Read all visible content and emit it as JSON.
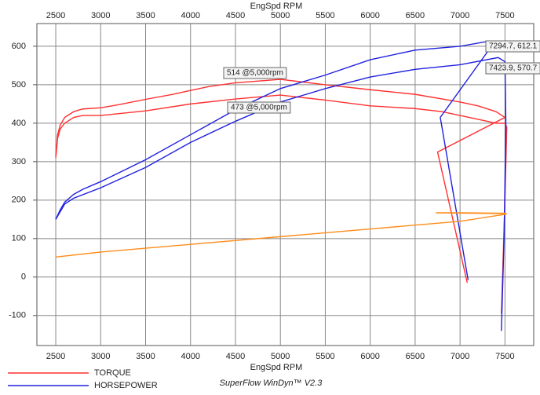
{
  "chart_data": {
    "type": "line",
    "x_label": "EngSpd  RPM",
    "footer": "SuperFlow WinDyn™ V2.3",
    "xlim": [
      2290,
      7820
    ],
    "ylim": [
      -178,
      659
    ],
    "xticks": [
      2500,
      3000,
      3500,
      4000,
      4500,
      5000,
      5500,
      6000,
      6500,
      7000,
      7500
    ],
    "yticks": [
      -100,
      0,
      100,
      200,
      300,
      400,
      500,
      600
    ],
    "grid": true,
    "series": [
      {
        "name": "TORQUE",
        "color": "#ff3030",
        "x": [
          2500,
          2520,
          2550,
          2600,
          2700,
          2800,
          3000,
          3200,
          3500,
          3800,
          4000,
          4200,
          4500,
          5000,
          5500,
          6000,
          6500,
          7000,
          7200,
          7400,
          7500,
          6750,
          7080
        ],
        "values": [
          315,
          370,
          395,
          415,
          430,
          437,
          440,
          448,
          462,
          475,
          485,
          495,
          505,
          514,
          500,
          487,
          475,
          455,
          445,
          430,
          415,
          325,
          -15
        ]
      },
      {
        "color": "#ff3030",
        "x": [
          2500,
          2520,
          2550,
          2600,
          2700,
          2800,
          3000,
          3500,
          4000,
          4500,
          5000,
          5500,
          6000,
          6500,
          6800,
          7000,
          7200,
          7400,
          7500,
          7520,
          7500,
          7460
        ],
        "values": [
          310,
          360,
          385,
          400,
          415,
          420,
          420,
          432,
          450,
          463,
          473,
          460,
          445,
          438,
          430,
          420,
          410,
          400,
          400,
          390,
          200,
          -95
        ]
      },
      {
        "name": "HORSEPOWER",
        "color": "#2020e0",
        "x": [
          2500,
          2550,
          2600,
          2700,
          2800,
          3000,
          3500,
          4000,
          4500,
          5000,
          5500,
          6000,
          6500,
          7000,
          7294.7,
          7350,
          6780,
          7090
        ],
        "values": [
          150,
          175,
          195,
          215,
          228,
          248,
          305,
          370,
          435,
          490,
          525,
          565,
          590,
          600,
          612.1,
          600,
          415,
          -8
        ]
      },
      {
        "color": "#2020e0",
        "x": [
          2500,
          2600,
          2700,
          3000,
          3500,
          4000,
          4500,
          5000,
          5500,
          6000,
          6500,
          7000,
          7423.9,
          7500,
          7510,
          7490,
          7460
        ],
        "values": [
          150,
          190,
          205,
          232,
          285,
          350,
          405,
          455,
          490,
          520,
          540,
          552,
          570.7,
          560,
          400,
          100,
          -140
        ]
      },
      {
        "color": "#ff8c1a",
        "x": [
          2500,
          3000,
          4000,
          5000,
          6000,
          7000,
          7500,
          7520,
          6730,
          7000,
          7500
        ],
        "values": [
          52,
          65,
          85,
          105,
          125,
          145,
          163,
          165,
          167,
          167,
          166
        ]
      }
    ],
    "annotations": [
      "514 @5,000rpm",
      "473 @5,000rpm",
      "7294.7, 612.1",
      "7423.9, 570.7"
    ]
  }
}
